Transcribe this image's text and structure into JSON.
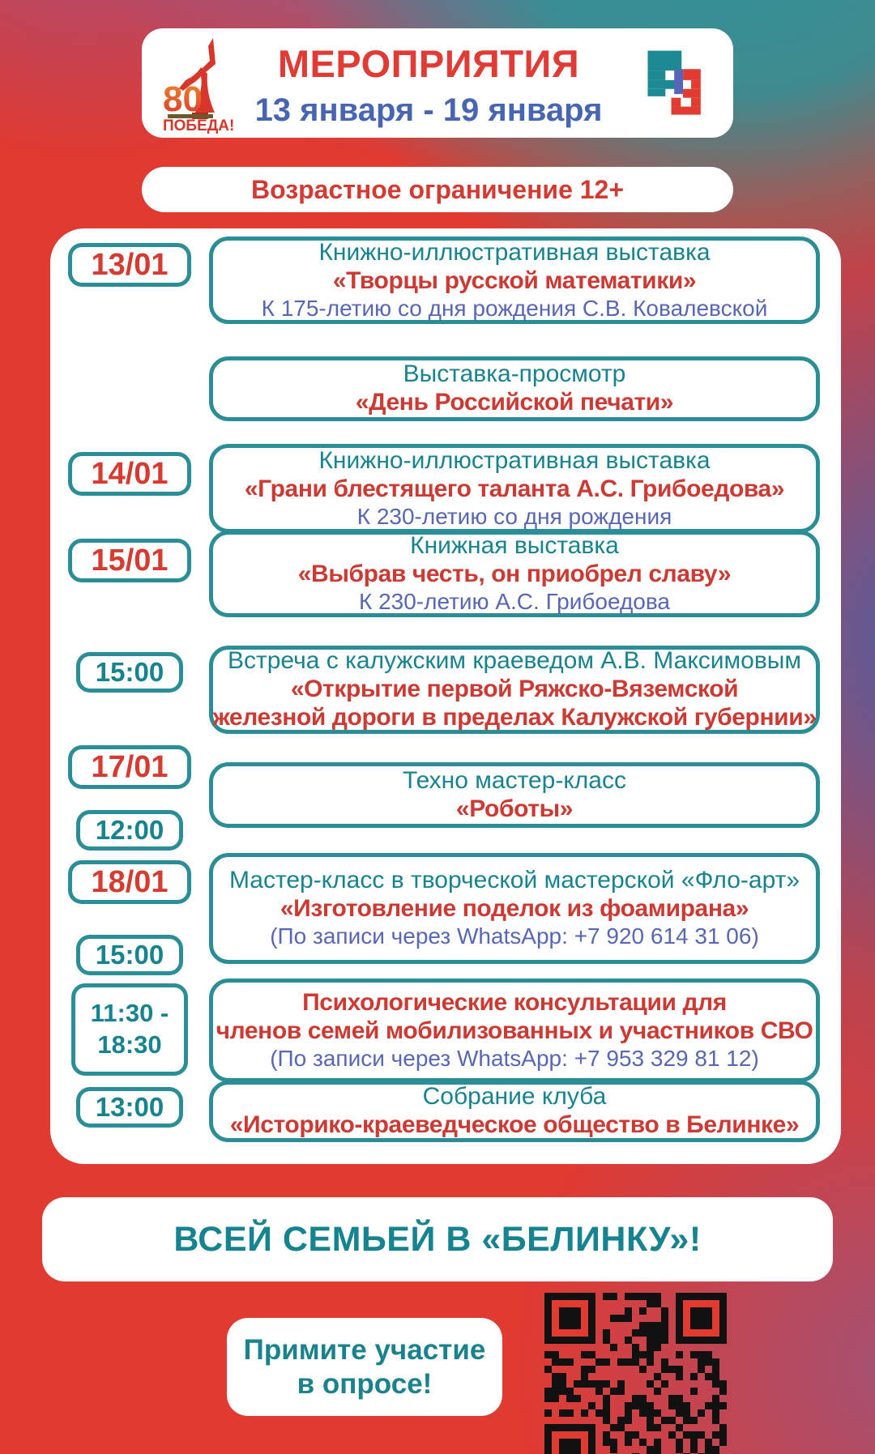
{
  "header": {
    "title": "МЕРОПРИЯТИЯ",
    "date_range": "13 января - 19 января",
    "victory_logo": {
      "number": "80",
      "label": "ПОБЕДА!"
    }
  },
  "age_restriction": "Возрастное ограничение 12+",
  "events": [
    {
      "badges": [
        {
          "text": "13/01",
          "type": "date"
        }
      ],
      "lines": [
        {
          "text": "Книжно-иллюстративная выставка",
          "style": "teal"
        },
        {
          "text": "«Творцы русской математики»",
          "style": "red"
        },
        {
          "text": "К 175-летию со дня рождения С.В. Ковалевской",
          "style": "blue"
        }
      ]
    },
    {
      "badges": [],
      "lines": [
        {
          "text": "Выставка-просмотр",
          "style": "teal"
        },
        {
          "text": "«День Российской печати»",
          "style": "red"
        }
      ]
    },
    {
      "badges": [
        {
          "text": "14/01",
          "type": "date"
        }
      ],
      "lines": [
        {
          "text": "Книжно-иллюстративная выставка",
          "style": "teal"
        },
        {
          "text": "«Грани блестящего таланта А.С. Грибоедова»",
          "style": "red"
        },
        {
          "text": "К 230-летию со дня рождения",
          "style": "blue"
        }
      ]
    },
    {
      "badges": [
        {
          "text": "15/01",
          "type": "date"
        }
      ],
      "lines": [
        {
          "text": "Книжная выставка",
          "style": "teal"
        },
        {
          "text": "«Выбрав честь, он приобрел славу»",
          "style": "red"
        },
        {
          "text": "К 230-летию А.С. Грибоедова",
          "style": "blue"
        }
      ]
    },
    {
      "badges": [
        {
          "text": "15:00",
          "type": "time"
        }
      ],
      "lines": [
        {
          "text": "Встреча с калужским краеведом А.В. Максимовым",
          "style": "teal"
        },
        {
          "text": "«Открытие первой Ряжско-Вяземской",
          "style": "red"
        },
        {
          "text": "железной дороги в пределах Калужской губернии»",
          "style": "red"
        }
      ]
    },
    {
      "badges": [
        {
          "text": "17/01",
          "type": "date"
        },
        {
          "text": "12:00",
          "type": "time"
        }
      ],
      "lines": [
        {
          "text": "Техно мастер-класс",
          "style": "teal"
        },
        {
          "text": "«Роботы»",
          "style": "red"
        }
      ]
    },
    {
      "badges": [
        {
          "text": "18/01",
          "type": "date"
        },
        {
          "text": "15:00",
          "type": "time"
        }
      ],
      "lines": [
        {
          "text": "Мастер-класс в творческой мастерской «Фло-арт»",
          "style": "teal"
        },
        {
          "text": "«Изготовление поделок из фоамирана»",
          "style": "red"
        },
        {
          "text": "(По записи через WhatsApp: +7 920 614 31 06)",
          "style": "blue"
        }
      ]
    },
    {
      "badges": [
        {
          "text": "11:30 - 18:30",
          "type": "range"
        }
      ],
      "lines": [
        {
          "text": "Психологические консультации для",
          "style": "red"
        },
        {
          "text": "членов семей мобилизованных и участников СВО",
          "style": "red"
        },
        {
          "text": "(По записи через WhatsApp: +7 953 329 81 12)",
          "style": "blue"
        }
      ]
    },
    {
      "badges": [
        {
          "text": "13:00",
          "type": "time"
        }
      ],
      "lines": [
        {
          "text": "Собрание клуба",
          "style": "teal"
        },
        {
          "text": "«Историко-краеведческое общество в Белинке»",
          "style": "red"
        }
      ]
    }
  ],
  "footer": {
    "family_banner": "ВСЕЙ СЕМЬЕЙ В «БЕЛИНКУ»!",
    "survey_line1": "Примите участие",
    "survey_line2": "в опросе!"
  },
  "colors": {
    "background_red": "#e03a31",
    "teal": "#2b8e96",
    "text_teal": "#17838e",
    "text_red": "#cd3a33",
    "text_blue": "#5866b5",
    "header_blue": "#4765b2"
  }
}
